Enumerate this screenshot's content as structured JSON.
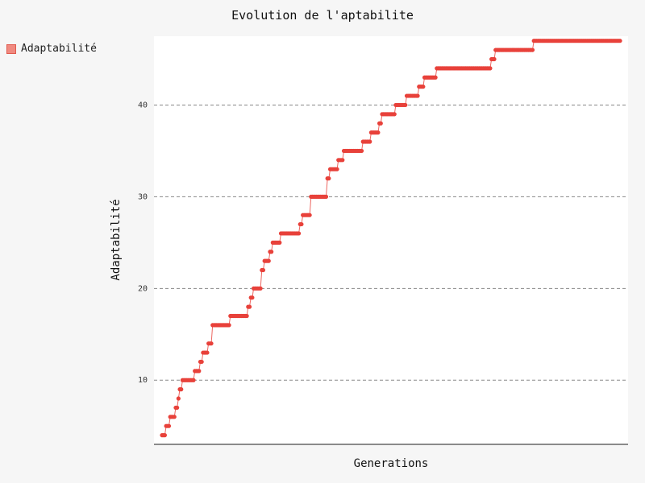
{
  "chart_data": {
    "type": "line",
    "title": "Evolution de l'aptabilite",
    "xlabel": "Generations",
    "ylabel": "Adaptabilité",
    "ylim": [
      3,
      47.5
    ],
    "yticks": [
      10,
      20,
      30,
      40
    ],
    "grid": "horizontal dashed",
    "legend_position": "top-left",
    "x_tick_labels_shown": false,
    "series": [
      {
        "name": "Adaptabilité",
        "color": "#e8413a",
        "values": [
          4,
          4,
          4,
          5,
          5,
          5,
          6,
          6,
          6,
          6,
          7,
          7,
          8,
          9,
          9,
          10,
          10,
          10,
          10,
          10,
          10,
          10,
          10,
          10,
          11,
          11,
          11,
          11,
          12,
          12,
          13,
          13,
          13,
          13,
          14,
          14,
          14,
          16,
          16,
          16,
          16,
          16,
          16,
          16,
          16,
          16,
          16,
          16,
          16,
          16,
          17,
          17,
          17,
          17,
          17,
          17,
          17,
          17,
          17,
          17,
          17,
          17,
          17,
          18,
          18,
          19,
          19,
          20,
          20,
          20,
          20,
          20,
          20,
          22,
          22,
          23,
          23,
          23,
          23,
          24,
          24,
          25,
          25,
          25,
          25,
          25,
          25,
          26,
          26,
          26,
          26,
          26,
          26,
          26,
          26,
          26,
          26,
          26,
          26,
          26,
          26,
          27,
          27,
          28,
          28,
          28,
          28,
          28,
          28,
          30,
          30,
          30,
          30,
          30,
          30,
          30,
          30,
          30,
          30,
          30,
          30,
          32,
          32,
          33,
          33,
          33,
          33,
          33,
          33,
          34,
          34,
          34,
          34,
          35,
          35,
          35,
          35,
          35,
          35,
          35,
          35,
          35,
          35,
          35,
          35,
          35,
          35,
          36,
          36,
          36,
          36,
          36,
          36,
          37,
          37,
          37,
          37,
          37,
          37,
          38,
          38,
          39,
          39,
          39,
          39,
          39,
          39,
          39,
          39,
          39,
          39,
          40,
          40,
          40,
          40,
          40,
          40,
          40,
          40,
          41,
          41,
          41,
          41,
          41,
          41,
          41,
          41,
          41,
          42,
          42,
          42,
          42,
          43,
          43,
          43,
          43,
          43,
          43,
          43,
          43,
          43,
          44,
          44,
          44,
          44,
          44,
          44,
          44,
          44,
          44,
          44,
          44,
          44,
          44,
          44,
          44,
          44,
          44,
          44,
          44,
          44,
          44,
          44,
          44,
          44,
          44,
          44,
          44,
          44,
          44,
          44,
          44,
          44,
          44,
          44,
          44,
          44,
          44,
          44,
          44,
          44,
          45,
          45,
          45,
          46,
          46,
          46,
          46,
          46,
          46,
          46,
          46,
          46,
          46,
          46,
          46,
          46,
          46,
          46,
          46,
          46,
          46,
          46,
          46,
          46,
          46,
          46,
          46,
          46,
          46,
          46,
          46,
          47,
          47,
          47,
          47,
          47,
          47,
          47,
          47,
          47,
          47,
          47,
          47,
          47,
          47,
          47,
          47,
          47,
          47,
          47,
          47,
          47,
          47,
          47,
          47,
          47,
          47,
          47,
          47,
          47,
          47,
          47,
          47,
          47,
          47,
          47,
          47,
          47,
          47,
          47,
          47,
          47,
          47,
          47,
          47,
          47,
          47,
          47,
          47,
          47,
          47,
          47,
          47,
          47,
          47,
          47,
          47,
          47,
          47,
          47,
          47,
          47,
          47,
          47,
          47
        ]
      }
    ]
  }
}
